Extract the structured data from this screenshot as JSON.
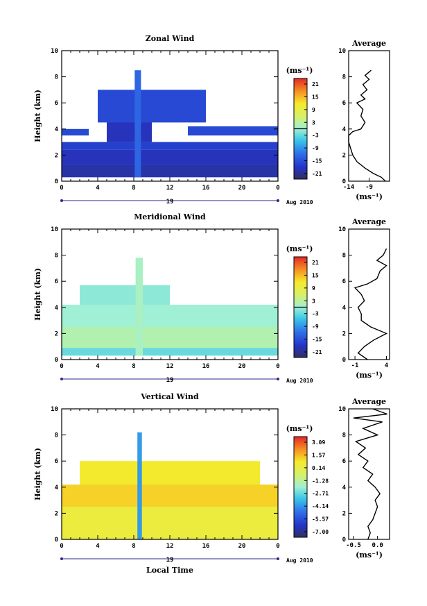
{
  "chart_data": [
    {
      "type": "heatmap",
      "title": "Zonal Wind",
      "ylabel": "Height (km)",
      "xlabel": "",
      "xlim": [
        0,
        24
      ],
      "ylim": [
        0,
        10
      ],
      "xticks": [
        "0",
        "4",
        "8",
        "12",
        "16",
        "20",
        "0"
      ],
      "yticks": [
        "0",
        "2",
        "4",
        "6",
        "8",
        "10"
      ],
      "date_label": "19",
      "month_label": "Aug 2010",
      "colorbar": {
        "unit": "(ms⁻¹)",
        "ticks": [
          "21",
          "15",
          "9",
          "3",
          "-3",
          "-9",
          "-15",
          "-21"
        ],
        "range": [
          -24,
          24
        ],
        "zero_line": true
      },
      "layers": [
        {
          "t0": 0.0,
          "t1": 24.0,
          "h0": 0.3,
          "h1": 1.3,
          "v": -20
        },
        {
          "t0": 0.0,
          "t1": 24.0,
          "h0": 1.3,
          "h1": 2.4,
          "v": -19
        },
        {
          "t0": 0.0,
          "t1": 24.0,
          "h0": 2.4,
          "h1": 3.0,
          "v": -17
        },
        {
          "t0": 0.0,
          "t1": 3.0,
          "h0": 3.5,
          "h1": 4.0,
          "v": -16
        },
        {
          "t0": 5.0,
          "t1": 10.0,
          "h0": 3.0,
          "h1": 4.6,
          "v": -19
        },
        {
          "t0": 4.0,
          "t1": 16.0,
          "h0": 4.5,
          "h1": 7.0,
          "v": -16
        },
        {
          "t0": 8.1,
          "t1": 8.8,
          "h0": 0.3,
          "h1": 8.5,
          "v": -13
        },
        {
          "t0": 14.0,
          "t1": 24.0,
          "h0": 3.5,
          "h1": 4.2,
          "v": -16
        }
      ],
      "average": {
        "title": "Average",
        "xlim": [
          -14,
          -4
        ],
        "xticks": [
          "-14",
          "-9"
        ],
        "xtick_values": [
          -14,
          -9
        ],
        "xlabel": "(ms⁻¹)",
        "profile": [
          [
            -5,
            0
          ],
          [
            -6,
            0.3
          ],
          [
            -8,
            0.6
          ],
          [
            -10,
            1.0
          ],
          [
            -12,
            1.5
          ],
          [
            -13,
            2.0
          ],
          [
            -13.5,
            2.5
          ],
          [
            -14,
            3.0
          ],
          [
            -14,
            3.5
          ],
          [
            -13,
            3.8
          ],
          [
            -11,
            4.0
          ],
          [
            -10,
            4.5
          ],
          [
            -11,
            5.0
          ],
          [
            -10.5,
            5.5
          ],
          [
            -12,
            6.0
          ],
          [
            -10,
            6.3
          ],
          [
            -11,
            6.6
          ],
          [
            -9.5,
            7.0
          ],
          [
            -10.5,
            7.4
          ],
          [
            -9,
            7.8
          ],
          [
            -10,
            8.1
          ],
          [
            -8.5,
            8.5
          ]
        ]
      }
    },
    {
      "type": "heatmap",
      "title": "Meridional Wind",
      "ylabel": "Height (km)",
      "xlabel": "",
      "xlim": [
        0,
        24
      ],
      "ylim": [
        0,
        10
      ],
      "xticks": [
        "0",
        "4",
        "8",
        "12",
        "16",
        "20",
        "0"
      ],
      "yticks": [
        "0",
        "2",
        "4",
        "6",
        "8",
        "10"
      ],
      "date_label": "19",
      "month_label": "Aug 2010",
      "colorbar": {
        "unit": "(ms⁻¹)",
        "ticks": [
          "21",
          "15",
          "9",
          "3",
          "-3",
          "-9",
          "-15",
          "-21"
        ],
        "range": [
          -24,
          24
        ],
        "zero_line": true
      },
      "layers": [
        {
          "t0": 0.0,
          "t1": 24.0,
          "h0": 0.3,
          "h1": 0.9,
          "v": -3
        },
        {
          "t0": 0.0,
          "t1": 24.0,
          "h0": 0.9,
          "h1": 2.5,
          "v": 2
        },
        {
          "t0": 0.0,
          "t1": 24.0,
          "h0": 2.5,
          "h1": 4.2,
          "v": 0
        },
        {
          "t0": 2.0,
          "t1": 12.0,
          "h0": 4.2,
          "h1": 5.7,
          "v": -1
        },
        {
          "t0": 8.2,
          "t1": 9.0,
          "h0": 0.3,
          "h1": 7.8,
          "v": 1
        }
      ],
      "average": {
        "title": "Average",
        "xlim": [
          -2,
          4.5
        ],
        "xticks": [
          "-1",
          "4"
        ],
        "xtick_values": [
          -1,
          4
        ],
        "xlabel": "(ms⁻¹)",
        "profile": [
          [
            1,
            0
          ],
          [
            -0.5,
            0.5
          ],
          [
            0.5,
            1.0
          ],
          [
            2,
            1.5
          ],
          [
            4,
            2.0
          ],
          [
            1.5,
            2.5
          ],
          [
            0,
            3.0
          ],
          [
            0,
            3.5
          ],
          [
            -0.5,
            4.0
          ],
          [
            0.5,
            4.5
          ],
          [
            0,
            5.0
          ],
          [
            -1,
            5.5
          ],
          [
            1,
            5.8
          ],
          [
            2.5,
            6.2
          ],
          [
            3,
            6.8
          ],
          [
            4,
            7.2
          ],
          [
            2.5,
            7.6
          ],
          [
            3.5,
            8.0
          ],
          [
            4,
            8.5
          ]
        ]
      }
    },
    {
      "type": "heatmap",
      "title": "Vertical Wind",
      "ylabel": "Height (km)",
      "xlabel": "Local Time",
      "xlim": [
        0,
        24
      ],
      "ylim": [
        0,
        10
      ],
      "xticks": [
        "0",
        "4",
        "8",
        "12",
        "16",
        "20",
        "0"
      ],
      "yticks": [
        "0",
        "2",
        "4",
        "6",
        "8",
        "10"
      ],
      "date_label": "19",
      "month_label": "Aug 2010",
      "colorbar": {
        "unit": "(ms⁻¹)",
        "ticks": [
          "3.09",
          "1.57",
          "0.14",
          "-1.28",
          "-2.71",
          "-4.14",
          "-5.57",
          "-7.00"
        ],
        "range": [
          -7.0,
          3.09
        ],
        "zero_line": false
      },
      "layers": [
        {
          "t0": 0.0,
          "t1": 24.0,
          "h0": 0.0,
          "h1": 2.5,
          "v": 0.15
        },
        {
          "t0": 0.0,
          "t1": 24.0,
          "h0": 2.5,
          "h1": 4.2,
          "v": 0.9
        },
        {
          "t0": 2.0,
          "t1": 22.0,
          "h0": 4.2,
          "h1": 6.0,
          "v": 0.5
        },
        {
          "t0": 8.4,
          "t1": 8.9,
          "h0": 0.0,
          "h1": 8.2,
          "v": -3.8
        }
      ],
      "average": {
        "title": "Average",
        "xlim": [
          -0.6,
          0.25
        ],
        "xticks": [
          "-0.5",
          "0.0"
        ],
        "xtick_values": [
          -0.5,
          0.0
        ],
        "xlabel": "(ms⁻¹)",
        "profile": [
          [
            -0.2,
            0
          ],
          [
            -0.15,
            0.5
          ],
          [
            -0.2,
            1.0
          ],
          [
            -0.1,
            1.5
          ],
          [
            -0.05,
            2.0
          ],
          [
            0.0,
            2.5
          ],
          [
            -0.05,
            3.0
          ],
          [
            0.05,
            3.5
          ],
          [
            -0.05,
            4.0
          ],
          [
            -0.2,
            4.5
          ],
          [
            -0.1,
            5.0
          ],
          [
            -0.3,
            5.5
          ],
          [
            -0.2,
            6.0
          ],
          [
            -0.4,
            6.5
          ],
          [
            -0.25,
            7.0
          ],
          [
            -0.45,
            7.5
          ],
          [
            0.0,
            8.0
          ],
          [
            -0.3,
            8.5
          ],
          [
            0.1,
            9.0
          ],
          [
            -0.5,
            9.3
          ],
          [
            0.2,
            9.6
          ],
          [
            -0.1,
            10
          ]
        ]
      }
    }
  ]
}
